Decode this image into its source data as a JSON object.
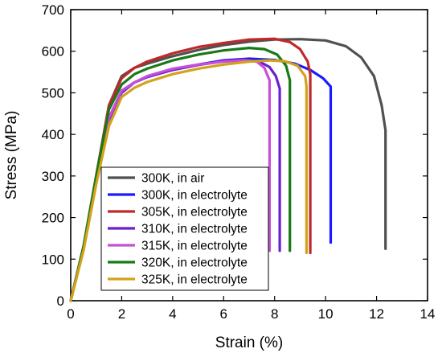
{
  "chart_data": {
    "type": "line",
    "xlabel": "Strain (%)",
    "ylabel": "Stress (MPa)",
    "xlim": [
      0,
      14
    ],
    "ylim": [
      0,
      700
    ],
    "xticks": [
      0,
      2,
      4,
      6,
      8,
      10,
      12,
      14
    ],
    "yticks": [
      0,
      100,
      200,
      300,
      400,
      500,
      600,
      700
    ],
    "legend_position": "bottom-left",
    "series": [
      {
        "name": "300K, in air",
        "color": "#505050",
        "x": [
          0,
          0.5,
          1.0,
          1.5,
          2.0,
          2.5,
          3.0,
          4.0,
          5.0,
          6.0,
          7.0,
          8.0,
          9.0,
          10.0,
          10.8,
          11.4,
          11.9,
          12.2,
          12.35,
          12.35
        ],
        "y": [
          0,
          130,
          300,
          470,
          540,
          560,
          570,
          588,
          603,
          615,
          623,
          628,
          629,
          626,
          612,
          585,
          540,
          470,
          410,
          125
        ]
      },
      {
        "name": "300K, in electrolyte",
        "color": "#1a1aff",
        "x": [
          0,
          0.5,
          1.0,
          1.5,
          2.0,
          2.5,
          3.0,
          4.0,
          5.0,
          6.0,
          7.0,
          8.0,
          8.8,
          9.4,
          9.9,
          10.2,
          10.2
        ],
        "y": [
          0,
          125,
          290,
          440,
          505,
          525,
          538,
          556,
          568,
          578,
          582,
          579,
          570,
          555,
          535,
          515,
          140
        ]
      },
      {
        "name": "305K, in electrolyte",
        "color": "#c0282a",
        "x": [
          0,
          0.5,
          1.0,
          1.5,
          2.0,
          2.5,
          3.0,
          4.0,
          5.0,
          6.0,
          7.0,
          8.0,
          8.6,
          9.0,
          9.3,
          9.4,
          9.4
        ],
        "y": [
          0,
          130,
          300,
          470,
          535,
          560,
          575,
          595,
          610,
          620,
          628,
          630,
          622,
          605,
          575,
          545,
          115
        ]
      },
      {
        "name": "310K, in electrolyte",
        "color": "#6a1fd1",
        "x": [
          0,
          0.5,
          1.0,
          1.5,
          2.0,
          2.5,
          3.0,
          4.0,
          5.0,
          6.0,
          6.8,
          7.4,
          7.8,
          8.05,
          8.2,
          8.2
        ],
        "y": [
          0,
          125,
          290,
          435,
          500,
          525,
          538,
          555,
          567,
          576,
          580,
          575,
          562,
          540,
          510,
          120
        ]
      },
      {
        "name": "315K, in electrolyte",
        "color": "#c64fd6",
        "x": [
          0,
          0.5,
          1.0,
          1.5,
          2.0,
          2.5,
          3.0,
          4.0,
          5.0,
          6.0,
          6.8,
          7.3,
          7.6,
          7.8,
          7.8
        ],
        "y": [
          0,
          125,
          290,
          440,
          505,
          525,
          540,
          558,
          568,
          575,
          578,
          575,
          560,
          530,
          120
        ]
      },
      {
        "name": "320K, in electrolyte",
        "color": "#177a17",
        "x": [
          0,
          0.5,
          1.0,
          1.5,
          2.0,
          2.5,
          3.0,
          4.0,
          5.0,
          6.0,
          7.0,
          7.6,
          8.1,
          8.45,
          8.6,
          8.6
        ],
        "y": [
          0,
          130,
          300,
          460,
          520,
          545,
          558,
          578,
          592,
          602,
          608,
          605,
          592,
          565,
          530,
          120
        ]
      },
      {
        "name": "325K, in electrolyte",
        "color": "#d3a21a",
        "x": [
          0,
          0.5,
          1.0,
          1.5,
          2.0,
          2.5,
          3.0,
          4.0,
          5.0,
          6.0,
          7.0,
          7.8,
          8.4,
          8.9,
          9.2,
          9.25,
          9.25
        ],
        "y": [
          0,
          120,
          280,
          420,
          490,
          512,
          526,
          545,
          558,
          568,
          575,
          578,
          576,
          565,
          540,
          515,
          115
        ]
      }
    ]
  }
}
